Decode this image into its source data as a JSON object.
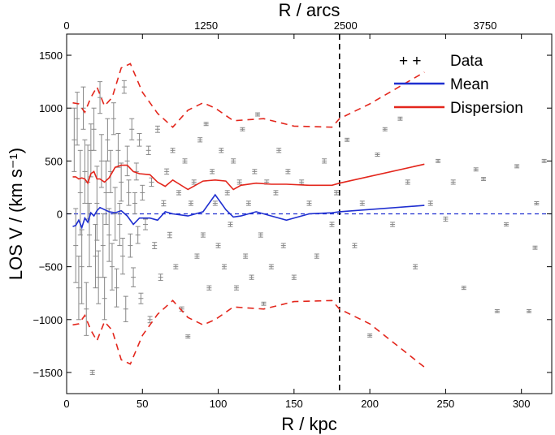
{
  "chart_data": {
    "type": "scatter",
    "x_bottom": {
      "label": "R / kpc",
      "range": [
        0,
        320
      ],
      "ticks": [
        0,
        50,
        100,
        150,
        200,
        250,
        300
      ],
      "tick_labels": [
        "0",
        "50",
        "100",
        "150",
        "200",
        "250",
        "300"
      ]
    },
    "x_top": {
      "label": "R / arcs",
      "range": [
        0,
        4348
      ],
      "ticks": [
        0,
        1250,
        2500,
        3750
      ],
      "tick_labels": [
        "0",
        "1250",
        "2500",
        "3750"
      ]
    },
    "y_axis": {
      "label": "LOS V / (km s⁻¹)",
      "range": [
        -1700,
        1700
      ],
      "ticks": [
        -1500,
        -1000,
        -500,
        0,
        500,
        1000,
        1500
      ],
      "tick_labels": [
        "−1500",
        "−1000",
        "−500",
        "0",
        "500",
        "1000",
        "1500"
      ]
    },
    "legend": {
      "placement": "top-right",
      "entries": [
        {
          "label": "Data",
          "marker": "+  +",
          "color": "#000000"
        },
        {
          "label": "Mean",
          "color": "#1f2fd0"
        },
        {
          "label": "Dispersion",
          "color": "#e3261c"
        }
      ]
    },
    "vertical_line": {
      "x": 180,
      "style": "dashed",
      "color": "#000000"
    },
    "zero_line": {
      "y": 0,
      "style": "dashed",
      "color": "#1f2fd0"
    },
    "series": [
      {
        "name": "Mean",
        "color": "#1f2fd0",
        "x": [
          4,
          6,
          8,
          10,
          12,
          14,
          16,
          18,
          20,
          22,
          25,
          28,
          32,
          36,
          40,
          44,
          48,
          55,
          60,
          65,
          70,
          80,
          90,
          98,
          105,
          110,
          115,
          125,
          135,
          145,
          160,
          175,
          180,
          236
        ],
        "y": [
          -120,
          -110,
          -60,
          -130,
          -40,
          -80,
          10,
          -20,
          30,
          60,
          40,
          20,
          10,
          30,
          -20,
          -100,
          -40,
          -40,
          -60,
          20,
          0,
          -20,
          20,
          180,
          40,
          -30,
          -20,
          20,
          -20,
          -60,
          0,
          10,
          20,
          80
        ]
      },
      {
        "name": "Dispersion",
        "color": "#e3261c",
        "x": [
          4,
          6,
          8,
          10,
          12,
          14,
          16,
          18,
          20,
          22,
          25,
          28,
          32,
          36,
          40,
          44,
          48,
          55,
          60,
          65,
          70,
          80,
          90,
          98,
          105,
          110,
          115,
          125,
          135,
          145,
          160,
          175,
          180,
          236
        ],
        "y": [
          350,
          350,
          330,
          340,
          330,
          290,
          380,
          400,
          330,
          330,
          300,
          340,
          440,
          460,
          460,
          400,
          380,
          370,
          300,
          260,
          320,
          230,
          310,
          320,
          310,
          230,
          270,
          290,
          280,
          280,
          270,
          270,
          290,
          470
        ]
      },
      {
        "name": "Dispersion band upper",
        "color": "#e3261c",
        "x": [
          4,
          8,
          12,
          16,
          20,
          25,
          30,
          36,
          42,
          50,
          60,
          70,
          80,
          90,
          98,
          110,
          130,
          150,
          175,
          180,
          200,
          236
        ],
        "y": [
          1050,
          1040,
          960,
          1100,
          1200,
          1020,
          1100,
          1380,
          1420,
          1150,
          950,
          820,
          980,
          1050,
          1000,
          880,
          900,
          830,
          820,
          900,
          1040,
          1340
        ]
      },
      {
        "name": "Dispersion band lower",
        "color": "#e3261c",
        "x": [
          4,
          8,
          12,
          16,
          20,
          25,
          30,
          36,
          42,
          50,
          60,
          70,
          80,
          90,
          98,
          110,
          130,
          150,
          175,
          180,
          200,
          236
        ],
        "y": [
          -1050,
          -1040,
          -960,
          -1100,
          -1200,
          -1020,
          -1100,
          -1380,
          -1420,
          -1150,
          -950,
          -820,
          -980,
          -1050,
          -1000,
          -880,
          -900,
          -830,
          -820,
          -900,
          -1040,
          -1450
        ]
      },
      {
        "name": "Data",
        "color": "#888888",
        "points": [
          [
            5,
            700,
            300
          ],
          [
            6,
            -300,
            350
          ],
          [
            7,
            900,
            250
          ],
          [
            8,
            -700,
            300
          ],
          [
            9,
            200,
            400
          ],
          [
            10,
            -500,
            350
          ],
          [
            11,
            1000,
            200
          ],
          [
            12,
            400,
            300
          ],
          [
            13,
            -900,
            250
          ],
          [
            14,
            300,
            350
          ],
          [
            15,
            -200,
            300
          ],
          [
            16,
            600,
            250
          ],
          [
            17,
            -1500,
            20
          ],
          [
            18,
            800,
            200
          ],
          [
            19,
            -400,
            300
          ],
          [
            20,
            100,
            350
          ],
          [
            21,
            -600,
            250
          ],
          [
            22,
            1100,
            150
          ],
          [
            23,
            500,
            250
          ],
          [
            24,
            -300,
            300
          ],
          [
            25,
            -800,
            200
          ],
          [
            26,
            200,
            300
          ],
          [
            27,
            700,
            200
          ],
          [
            28,
            -200,
            250
          ],
          [
            29,
            400,
            200
          ],
          [
            30,
            -500,
            220
          ],
          [
            31,
            900,
            150
          ],
          [
            32,
            0,
            250
          ],
          [
            33,
            -700,
            180
          ],
          [
            34,
            600,
            160
          ],
          [
            35,
            -100,
            200
          ],
          [
            36,
            300,
            180
          ],
          [
            37,
            -400,
            170
          ],
          [
            38,
            1200,
            60
          ],
          [
            39,
            -900,
            120
          ],
          [
            40,
            500,
            140
          ],
          [
            41,
            200,
            120
          ],
          [
            42,
            -300,
            110
          ],
          [
            43,
            800,
            100
          ],
          [
            44,
            -600,
            90
          ],
          [
            45,
            100,
            100
          ],
          [
            46,
            400,
            80
          ],
          [
            47,
            -200,
            80
          ],
          [
            48,
            700,
            60
          ],
          [
            49,
            -800,
            50
          ],
          [
            50,
            200,
            70
          ],
          [
            52,
            -100,
            50
          ],
          [
            54,
            600,
            40
          ],
          [
            55,
            -1000,
            30
          ],
          [
            56,
            300,
            40
          ],
          [
            58,
            -300,
            30
          ],
          [
            60,
            800,
            30
          ],
          [
            62,
            -600,
            30
          ],
          [
            64,
            100,
            25
          ],
          [
            66,
            400,
            25
          ],
          [
            68,
            -200,
            25
          ],
          [
            70,
            600,
            20
          ],
          [
            72,
            -500,
            20
          ],
          [
            74,
            200,
            20
          ],
          [
            76,
            -900,
            20
          ],
          [
            78,
            500,
            20
          ],
          [
            80,
            -1160,
            15
          ],
          [
            82,
            100,
            20
          ],
          [
            84,
            300,
            20
          ],
          [
            86,
            -400,
            20
          ],
          [
            88,
            700,
            20
          ],
          [
            90,
            -200,
            20
          ],
          [
            92,
            850,
            15
          ],
          [
            94,
            -700,
            20
          ],
          [
            96,
            400,
            20
          ],
          [
            98,
            100,
            20
          ],
          [
            100,
            -300,
            20
          ],
          [
            102,
            600,
            20
          ],
          [
            104,
            -500,
            20
          ],
          [
            106,
            200,
            20
          ],
          [
            108,
            -100,
            20
          ],
          [
            110,
            500,
            20
          ],
          [
            112,
            -700,
            20
          ],
          [
            114,
            300,
            20
          ],
          [
            116,
            800,
            15
          ],
          [
            118,
            -400,
            20
          ],
          [
            120,
            100,
            20
          ],
          [
            122,
            -600,
            20
          ],
          [
            124,
            400,
            20
          ],
          [
            126,
            940,
            15
          ],
          [
            128,
            -200,
            20
          ],
          [
            130,
            -850,
            15
          ],
          [
            132,
            300,
            20
          ],
          [
            135,
            -500,
            20
          ],
          [
            138,
            200,
            20
          ],
          [
            140,
            600,
            20
          ],
          [
            143,
            -300,
            20
          ],
          [
            146,
            400,
            20
          ],
          [
            150,
            -600,
            20
          ],
          [
            155,
            300,
            20
          ],
          [
            160,
            100,
            20
          ],
          [
            165,
            -400,
            20
          ],
          [
            170,
            500,
            20
          ],
          [
            175,
            -100,
            20
          ],
          [
            178,
            200,
            20
          ],
          [
            185,
            700,
            15
          ],
          [
            190,
            -300,
            20
          ],
          [
            195,
            100,
            20
          ],
          [
            200,
            -1150,
            15
          ],
          [
            205,
            560,
            15
          ],
          [
            210,
            800,
            15
          ],
          [
            215,
            -100,
            20
          ],
          [
            220,
            900,
            15
          ],
          [
            225,
            300,
            20
          ],
          [
            230,
            -500,
            20
          ],
          [
            240,
            100,
            20
          ],
          [
            245,
            500,
            15
          ],
          [
            250,
            -50,
            20
          ],
          [
            255,
            300,
            20
          ],
          [
            262,
            -700,
            15
          ],
          [
            270,
            420,
            15
          ],
          [
            275,
            330,
            15
          ],
          [
            284,
            -920,
            15
          ],
          [
            290,
            -100,
            15
          ],
          [
            297,
            450,
            15
          ],
          [
            305,
            -920,
            15
          ],
          [
            309,
            -320,
            15
          ],
          [
            310,
            100,
            15
          ],
          [
            315,
            500,
            15
          ]
        ]
      }
    ]
  }
}
